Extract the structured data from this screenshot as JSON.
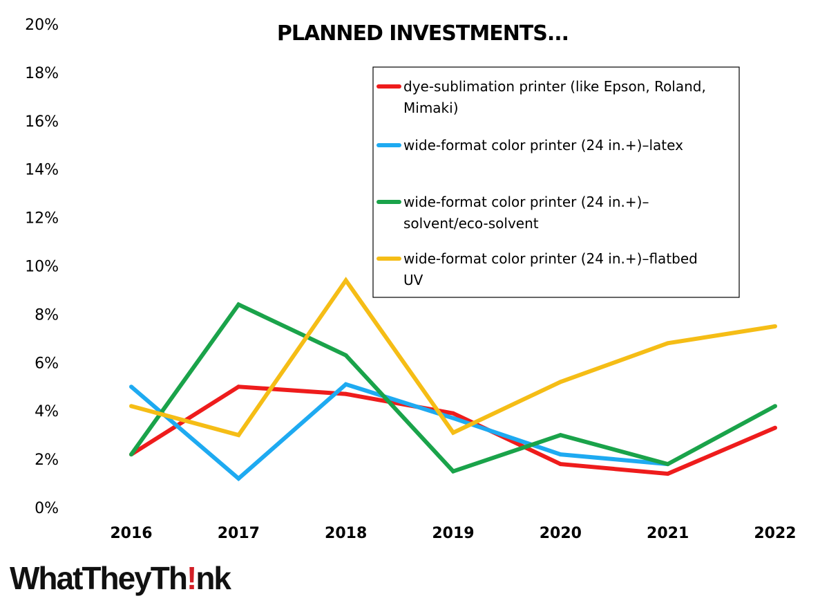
{
  "chart_data": {
    "type": "line",
    "title": "PLANNED INVESTMENTS...",
    "x": [
      "2016",
      "2017",
      "2018",
      "2019",
      "2020",
      "2021",
      "2022"
    ],
    "y_ticks": [
      "0%",
      "2%",
      "4%",
      "6%",
      "8%",
      "10%",
      "12%",
      "14%",
      "16%",
      "18%",
      "20%"
    ],
    "ylim": [
      0,
      20
    ],
    "y_unit": "%",
    "grid": false,
    "legend_position": "top-right",
    "series": [
      {
        "name": "dye-sublimation printer (like Epson, Roland, Mimaki)",
        "name_lines": [
          "dye-sublimation printer (like Epson, Roland,",
          "Mimaki)"
        ],
        "color": "#ee1c1c",
        "values": [
          2.2,
          5.0,
          4.7,
          3.9,
          1.8,
          1.4,
          3.3
        ]
      },
      {
        "name": "wide-format color printer (24 in.+)–latex",
        "name_lines": [
          "wide-format color printer (24 in.+)–latex"
        ],
        "color": "#1eaaf1",
        "values": [
          5.0,
          1.2,
          5.1,
          3.7,
          2.2,
          1.8,
          null
        ]
      },
      {
        "name": "wide-format color printer (24 in.+)–solvent/eco-solvent",
        "name_lines": [
          "wide-format color printer (24 in.+)–",
          "solvent/eco-solvent"
        ],
        "color": "#1aa34a",
        "values": [
          2.2,
          8.4,
          6.3,
          1.5,
          3.0,
          1.8,
          4.2
        ]
      },
      {
        "name": "wide-format color printer (24 in.+)–flatbed UV",
        "name_lines": [
          "wide-format color printer (24 in.+)–flatbed",
          "UV"
        ],
        "color": "#f5bd16",
        "values": [
          4.2,
          3.0,
          9.4,
          3.1,
          5.2,
          6.8,
          7.5
        ]
      }
    ]
  },
  "logo": {
    "text_before": "WhatTheyTh",
    "text_mark": "!",
    "text_after": "nk"
  }
}
